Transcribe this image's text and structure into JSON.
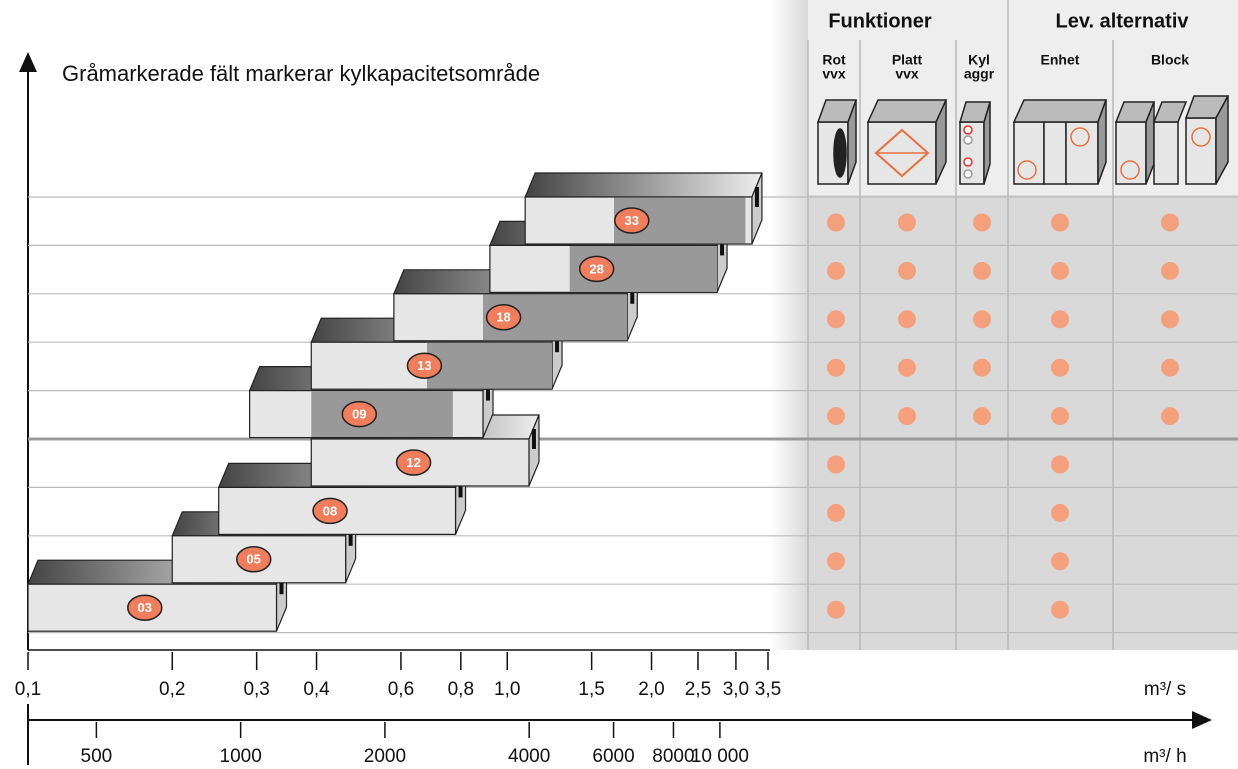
{
  "note": "Gråmarkerade fält markerar kylkapacitetsområde",
  "groups": [
    {
      "title": "Funktioner",
      "columns": [
        [
          "Rot",
          "vvx"
        ],
        [
          "Platt",
          "vvx"
        ],
        [
          "Kyl",
          "aggr"
        ]
      ]
    },
    {
      "title": "Lev. alternativ",
      "columns": [
        [
          "Enhet"
        ],
        [
          "Block"
        ]
      ]
    }
  ],
  "chart_data": {
    "type": "range-bar",
    "xlog": true,
    "xlim": [
      0.1,
      3.5
    ],
    "xticks": [
      {
        "value": 0.1,
        "label": "0,1"
      },
      {
        "value": 0.2,
        "label": "0,2"
      },
      {
        "value": 0.3,
        "label": "0,3"
      },
      {
        "value": 0.4,
        "label": "0,4"
      },
      {
        "value": 0.6,
        "label": "0,6"
      },
      {
        "value": 0.8,
        "label": "0,8"
      },
      {
        "value": 1.0,
        "label": "1,0"
      },
      {
        "value": 1.5,
        "label": "1,5"
      },
      {
        "value": 2.0,
        "label": "2,0"
      },
      {
        "value": 2.5,
        "label": "2,5"
      },
      {
        "value": 3.0,
        "label": "3,0"
      },
      {
        "value": 3.5,
        "label": "3,5"
      }
    ],
    "xlabel": "m³/ s",
    "x2lim": [
      360,
      12600
    ],
    "x2ticks": [
      500,
      1000,
      2000,
      4000,
      6000,
      8000,
      {
        "value": 10000,
        "label": "10 000"
      }
    ],
    "x2label": "m³/ h",
    "rows": [
      {
        "model": "33",
        "range": [
          1.09,
          3.24
        ],
        "cooling": [
          1.67,
          3.14
        ],
        "features": [
          true,
          true,
          true,
          true,
          true
        ]
      },
      {
        "model": "28",
        "range": [
          0.92,
          2.74
        ],
        "cooling": [
          1.35,
          2.74
        ],
        "features": [
          true,
          true,
          true,
          true,
          true
        ]
      },
      {
        "model": "18",
        "range": [
          0.58,
          1.78
        ],
        "cooling": [
          0.89,
          1.78
        ],
        "features": [
          true,
          true,
          true,
          true,
          true
        ]
      },
      {
        "model": "13",
        "range": [
          0.39,
          1.24
        ],
        "cooling": [
          0.68,
          1.24
        ],
        "features": [
          true,
          true,
          true,
          true,
          true
        ]
      },
      {
        "model": "09",
        "range": [
          0.29,
          0.89
        ],
        "cooling": [
          0.39,
          0.77
        ],
        "features": [
          true,
          true,
          true,
          true,
          true
        ]
      },
      {
        "model": "12",
        "range": [
          0.39,
          1.11
        ],
        "features": [
          true,
          false,
          false,
          true,
          false
        ]
      },
      {
        "model": "08",
        "range": [
          0.25,
          0.78
        ],
        "features": [
          true,
          false,
          false,
          true,
          false
        ]
      },
      {
        "model": "05",
        "range": [
          0.2,
          0.46
        ],
        "features": [
          true,
          false,
          false,
          true,
          false
        ]
      },
      {
        "model": "03",
        "range": [
          0.1,
          0.33
        ],
        "features": [
          true,
          false,
          false,
          true,
          false
        ]
      }
    ]
  }
}
